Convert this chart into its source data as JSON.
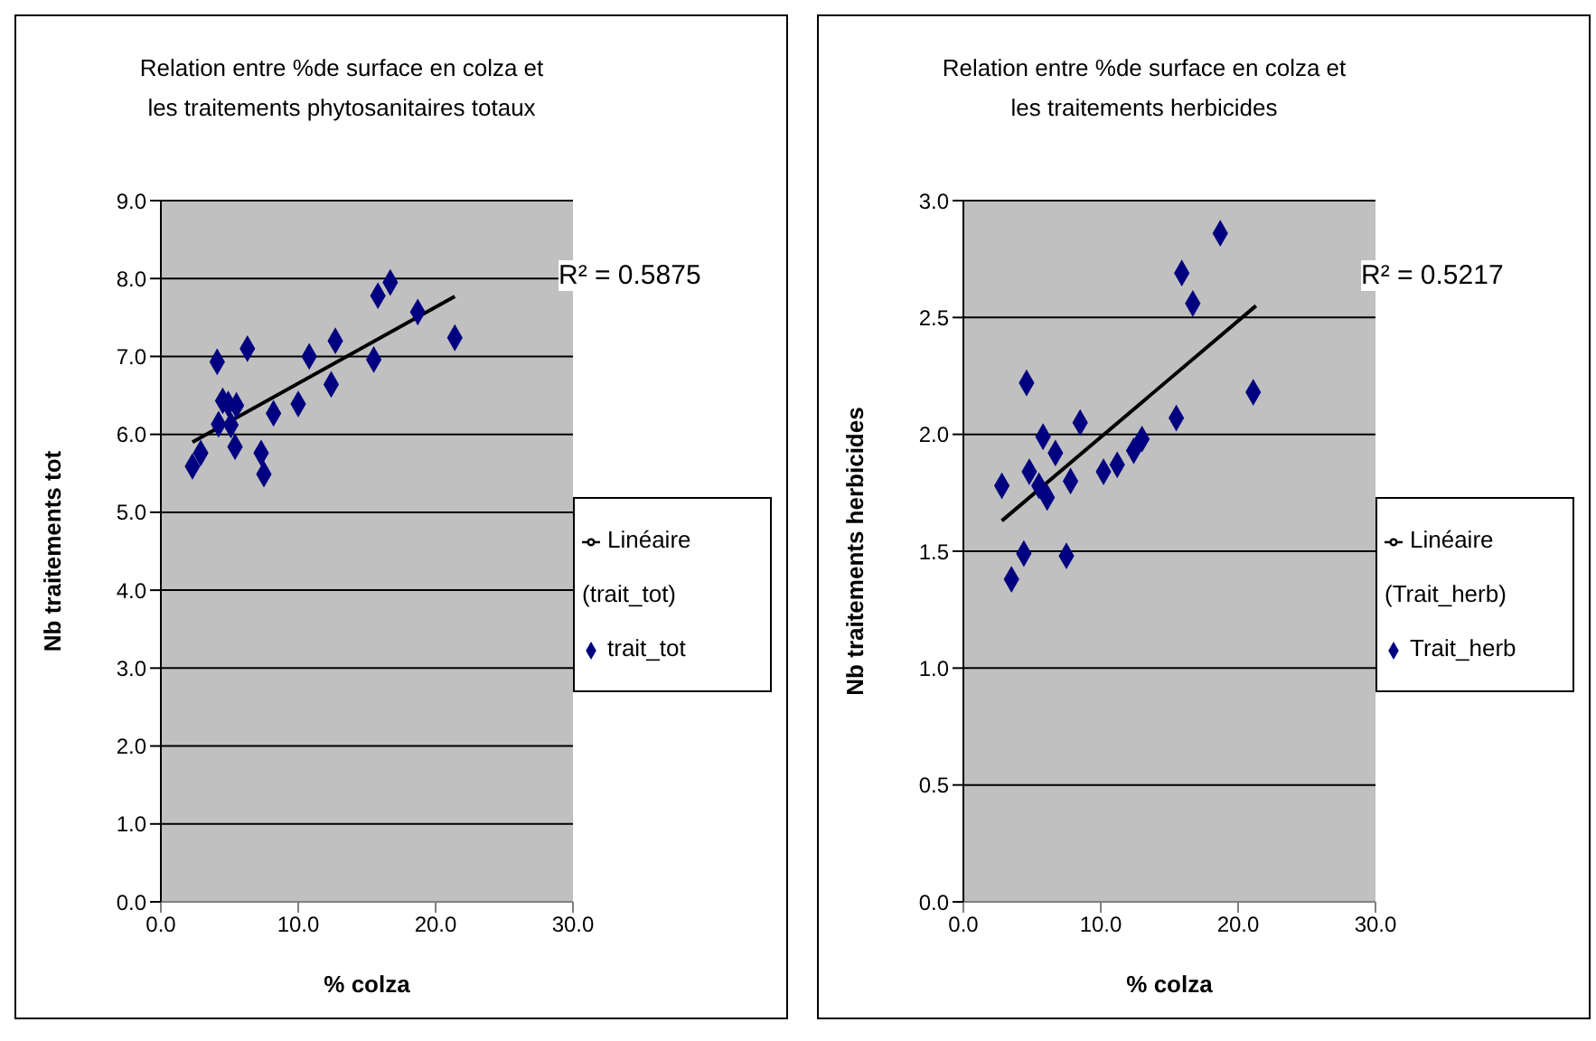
{
  "chart_data": [
    {
      "type": "scatter",
      "title": "Relation entre %de surface en colza et les traitements phytosanitaires totaux",
      "xlabel": "% colza",
      "ylabel": "Nb traitements tot",
      "annotations": [
        "R² = 0.5875"
      ],
      "legend": "right",
      "grid": "y",
      "marker": "diamond",
      "xlim": [
        0,
        30
      ],
      "xticks": [
        {
          "value": 0,
          "label": "0.0"
        },
        {
          "value": 10,
          "label": "10.0"
        },
        {
          "value": 20,
          "label": "20.0"
        },
        {
          "value": 30,
          "label": "30.0"
        }
      ],
      "ylim": [
        0,
        9
      ],
      "yticks": [
        {
          "value": 0,
          "label": "0.0"
        },
        {
          "value": 1,
          "label": "1.0"
        },
        {
          "value": 2,
          "label": "2.0"
        },
        {
          "value": 3,
          "label": "3.0"
        },
        {
          "value": 4,
          "label": "4.0"
        },
        {
          "value": 5,
          "label": "5.0"
        },
        {
          "value": 6,
          "label": "6.0"
        },
        {
          "value": 7,
          "label": "7.0"
        },
        {
          "value": 8,
          "label": "8.0"
        },
        {
          "value": 9,
          "label": "9.0"
        }
      ],
      "series": [
        {
          "name": "trait_tot",
          "color": "#000080",
          "x": [
            2.3,
            2.9,
            4.1,
            4.5,
            4.9,
            5.5,
            4.2,
            5.1,
            5.4,
            6.3,
            7.3,
            7.5,
            8.2,
            10.0,
            10.8,
            12.4,
            12.7,
            15.5,
            15.8,
            16.7,
            18.7,
            21.4
          ],
          "values": [
            5.59,
            5.76,
            6.93,
            6.43,
            6.39,
            6.37,
            6.13,
            6.12,
            5.84,
            7.1,
            5.76,
            5.49,
            6.27,
            6.39,
            7.0,
            6.64,
            7.2,
            6.96,
            7.78,
            7.95,
            7.57,
            7.24
          ]
        },
        {
          "name": "Linéaire (trait_tot)",
          "type": "line",
          "color": "#000000",
          "marker": "none",
          "x": [
            2.3,
            21.4
          ],
          "values": [
            5.9,
            7.77
          ]
        }
      ]
    },
    {
      "type": "scatter",
      "title": "Relation entre %de surface en colza et les traitements herbicides",
      "xlabel": "% colza",
      "ylabel": "Nb traitements herbicides",
      "annotations": [
        "R² = 0.5217"
      ],
      "legend": "right",
      "grid": "y",
      "marker": "diamond",
      "xlim": [
        0,
        30
      ],
      "xticks": [
        {
          "value": 0,
          "label": "0.0"
        },
        {
          "value": 10,
          "label": "10.0"
        },
        {
          "value": 20,
          "label": "20.0"
        },
        {
          "value": 30,
          "label": "30.0"
        }
      ],
      "ylim": [
        0,
        3
      ],
      "yticks": [
        {
          "value": 0,
          "label": "0.0"
        },
        {
          "value": 0.5,
          "label": "0.5"
        },
        {
          "value": 1,
          "label": "1.0"
        },
        {
          "value": 1.5,
          "label": "1.5"
        },
        {
          "value": 2,
          "label": "2.0"
        },
        {
          "value": 2.5,
          "label": "2.5"
        },
        {
          "value": 3,
          "label": "3.0"
        }
      ],
      "series": [
        {
          "name": "Trait_herb",
          "color": "#000080",
          "x": [
            2.8,
            3.5,
            4.4,
            4.6,
            4.8,
            5.5,
            5.8,
            6.1,
            6.7,
            7.5,
            7.8,
            8.5,
            10.2,
            11.2,
            12.4,
            13.0,
            15.5,
            15.9,
            16.7,
            18.7,
            21.1
          ],
          "values": [
            1.78,
            1.38,
            1.49,
            2.22,
            1.84,
            1.78,
            1.99,
            1.73,
            1.92,
            1.48,
            1.8,
            2.05,
            1.84,
            1.87,
            1.93,
            1.98,
            2.07,
            2.69,
            2.56,
            2.86,
            2.18
          ]
        },
        {
          "name": "Linéaire (Trait_herb)",
          "type": "line",
          "color": "#000000",
          "marker": "none",
          "x": [
            2.8,
            21.3
          ],
          "values": [
            1.63,
            2.55
          ]
        }
      ]
    }
  ]
}
